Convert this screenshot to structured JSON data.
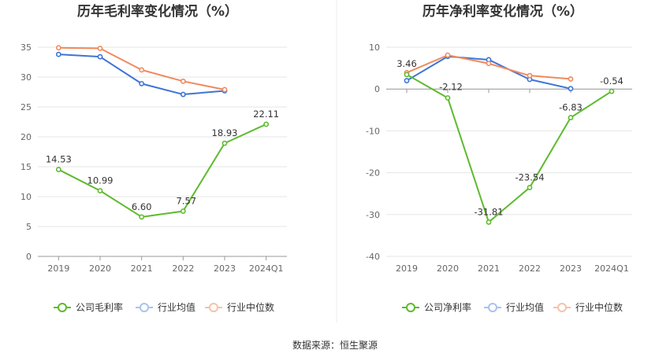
{
  "source": "数据来源：恒生聚源",
  "chart_data": [
    {
      "type": "line",
      "title": "历年毛利率变化情况（%）",
      "categories": [
        "2019",
        "2020",
        "2021",
        "2022",
        "2023",
        "2024Q1"
      ],
      "ylim": [
        0,
        35
      ],
      "yticks": [
        0,
        5,
        10,
        15,
        20,
        25,
        30,
        35
      ],
      "grid": true,
      "legend_position": "bottom",
      "series": [
        {
          "name": "公司毛利率",
          "color": "#5dbb2e",
          "values": [
            14.53,
            10.99,
            6.6,
            7.57,
            18.93,
            22.11
          ],
          "labels": [
            "14.53",
            "10.99",
            "6.60",
            "7.57",
            "18.93",
            "22.11"
          ]
        },
        {
          "name": "行业均值",
          "color": "#3d74d6",
          "values": [
            33.8,
            33.4,
            28.9,
            27.1,
            27.7,
            null
          ]
        },
        {
          "name": "行业中位数",
          "color": "#f08a5d",
          "values": [
            34.9,
            34.8,
            31.2,
            29.3,
            27.9,
            null
          ]
        }
      ]
    },
    {
      "type": "line",
      "title": "历年净利率变化情况（%）",
      "categories": [
        "2019",
        "2020",
        "2021",
        "2022",
        "2023",
        "2024Q1"
      ],
      "ylim": [
        -40,
        10
      ],
      "yticks": [
        -40,
        -30,
        -20,
        -10,
        0,
        10
      ],
      "grid": true,
      "legend_position": "bottom",
      "series": [
        {
          "name": "公司净利率",
          "color": "#5dbb2e",
          "values": [
            3.46,
            -2.12,
            -31.81,
            -23.54,
            -6.83,
            -0.54
          ],
          "labels": [
            "3.46",
            "-2.12",
            "-31.81",
            "-23.54",
            "-6.83",
            "-0.54"
          ]
        },
        {
          "name": "行业均值",
          "color": "#3d74d6",
          "values": [
            2.0,
            7.8,
            7.0,
            2.3,
            0.1,
            null
          ]
        },
        {
          "name": "行业中位数",
          "color": "#f08a5d",
          "values": [
            3.9,
            8.1,
            6.1,
            3.2,
            2.4,
            null
          ]
        }
      ]
    }
  ]
}
